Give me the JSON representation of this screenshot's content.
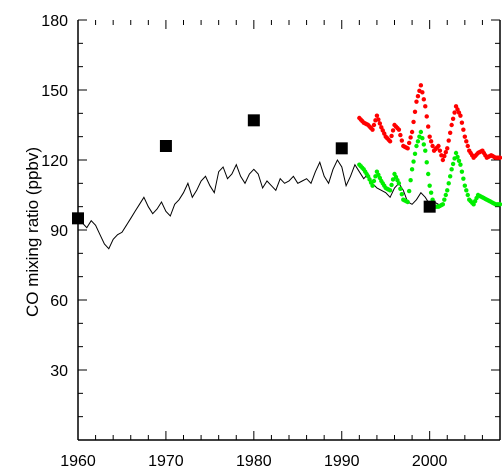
{
  "chart_data": {
    "type": "line",
    "title": "",
    "xlabel": "",
    "ylabel": "CO mixing ratio (ppbv)",
    "xlim": [
      1960,
      2008
    ],
    "ylim": [
      0,
      180
    ],
    "x_ticks": [
      1960,
      1970,
      1980,
      1990,
      2000
    ],
    "y_ticks": [
      30,
      60,
      90,
      120,
      150,
      180
    ],
    "grid": false,
    "legend": "none",
    "series": [
      {
        "style": "line",
        "color": "#000000",
        "x": [
          1960.0,
          1960.5,
          1961.0,
          1961.5,
          1962.0,
          1962.5,
          1963.0,
          1963.5,
          1964.0,
          1964.5,
          1965.0,
          1965.5,
          1966.0,
          1966.5,
          1967.0,
          1967.5,
          1968.0,
          1968.5,
          1969.0,
          1969.5,
          1970.0,
          1970.5,
          1971.0,
          1971.5,
          1972.0,
          1972.5,
          1973.0,
          1973.5,
          1974.0,
          1974.5,
          1975.0,
          1975.5,
          1976.0,
          1976.5,
          1977.0,
          1977.5,
          1978.0,
          1978.5,
          1979.0,
          1979.5,
          1980.0,
          1980.5,
          1981.0,
          1981.5,
          1982.0,
          1982.5,
          1983.0,
          1983.5,
          1984.0,
          1984.5,
          1985.0,
          1985.5,
          1986.0,
          1986.5,
          1987.0,
          1987.5,
          1988.0,
          1988.5,
          1989.0,
          1989.5,
          1990.0,
          1990.5,
          1991.0,
          1991.5,
          1992.0,
          1992.5,
          1993.0,
          1993.5,
          1994.0,
          1994.5,
          1995.0,
          1995.5,
          1996.0,
          1996.5,
          1997.0,
          1997.5,
          1998.0,
          1998.5,
          1999.0,
          1999.5,
          2000.0,
          2000.5,
          2001.0
        ],
        "y": [
          95,
          93,
          91,
          94,
          92,
          88,
          84,
          82,
          86,
          88,
          89,
          92,
          95,
          98,
          101,
          104,
          100,
          97,
          99,
          102,
          98,
          96,
          101,
          103,
          106,
          110,
          104,
          107,
          111,
          113,
          109,
          106,
          115,
          117,
          112,
          114,
          118,
          113,
          110,
          114,
          116,
          114,
          108,
          111,
          109,
          107,
          112,
          110,
          111,
          113,
          110,
          111,
          112,
          110,
          115,
          119,
          113,
          110,
          116,
          120,
          117,
          109,
          113,
          118,
          115,
          112,
          114,
          110,
          108,
          107,
          106,
          104,
          108,
          110,
          107,
          102,
          101,
          103,
          106,
          104,
          101,
          102,
          101
        ]
      },
      {
        "style": "points",
        "color": "#ff0000",
        "x": [
          1992.0,
          1992.5,
          1993.0,
          1993.5,
          1994.0,
          1994.5,
          1995.0,
          1995.5,
          1996.0,
          1996.5,
          1997.0,
          1997.5,
          1998.0,
          1998.5,
          1999.0,
          1999.5,
          2000.0,
          2000.5,
          2001.0,
          2001.5,
          2002.0,
          2002.5,
          2003.0,
          2003.5,
          2004.0,
          2004.5,
          2005.0,
          2005.5,
          2006.0,
          2006.5,
          2007.0,
          2007.5,
          2008.0
        ],
        "y": [
          138,
          136,
          135,
          133,
          139,
          134,
          130,
          128,
          135,
          133,
          126,
          125,
          132,
          145,
          152,
          143,
          130,
          124,
          126,
          120,
          125,
          135,
          143,
          139,
          130,
          124,
          121,
          123,
          124,
          121,
          122,
          121,
          121
        ]
      },
      {
        "style": "points",
        "color": "#00ee00",
        "x": [
          1992.0,
          1992.5,
          1993.0,
          1993.5,
          1994.0,
          1994.5,
          1995.0,
          1995.5,
          1996.0,
          1996.5,
          1997.0,
          1997.5,
          1998.0,
          1998.5,
          1999.0,
          1999.5,
          2000.0,
          2000.5,
          2001.0,
          2001.5,
          2002.0,
          2002.5,
          2003.0,
          2003.5,
          2004.0,
          2004.5,
          2005.0,
          2005.5,
          2006.0,
          2006.5,
          2007.0,
          2007.5,
          2008.0
        ],
        "y": [
          118,
          116,
          113,
          109,
          115,
          111,
          108,
          107,
          114,
          110,
          103,
          102,
          116,
          126,
          132,
          124,
          109,
          100,
          100,
          101,
          107,
          116,
          123,
          118,
          109,
          103,
          101,
          105,
          104,
          103,
          102,
          101,
          101
        ]
      },
      {
        "style": "squares",
        "color": "#000000",
        "x": [
          1960,
          1970,
          1980,
          1990,
          2000
        ],
        "y": [
          95,
          126,
          137,
          125,
          100
        ]
      }
    ]
  }
}
